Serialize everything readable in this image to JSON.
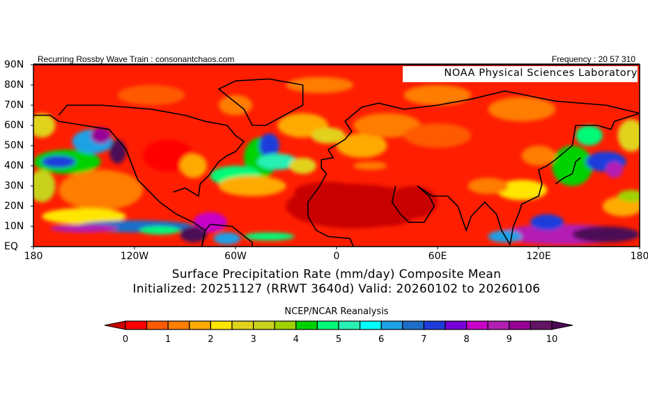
{
  "header": {
    "left": "Recurring Rossby Wave Train : consonantchaos.com",
    "right": "Frequency : 20 57 310"
  },
  "credit": "NOAA Physical Sciences Laboratory",
  "map": {
    "lat_labels": [
      "90N",
      "80N",
      "70N",
      "60N",
      "50N",
      "40N",
      "30N",
      "20N",
      "10N",
      "EQ"
    ],
    "lon_labels": [
      "180",
      "120W",
      "60W",
      "0",
      "60E",
      "120E",
      "180"
    ],
    "extent": {
      "lon": [
        -180,
        180
      ],
      "lat": [
        0,
        90
      ]
    },
    "variable": "Surface Precipitation Rate (mm/day)"
  },
  "title": {
    "line1": "Surface Precipitation Rate (mm/day) Composite Mean",
    "line2": "Initialized: 20251127 (RRWT 3640d) Valid: 20260102 to 20260106"
  },
  "colorbar": {
    "label": "NCEP/NCAR Reanalysis",
    "tick_labels": [
      "0",
      "1",
      "2",
      "3",
      "4",
      "5",
      "6",
      "7",
      "8",
      "9",
      "10"
    ],
    "range": [
      0,
      10
    ],
    "step": 0.5,
    "under_color": "#c80000",
    "over_color": "#4b0a55",
    "colors": [
      "#ff0000",
      "#ff5a00",
      "#ff7d00",
      "#ffaa00",
      "#ffe600",
      "#e1d21e",
      "#c8d21e",
      "#a0d200",
      "#00d200",
      "#00fa78",
      "#28f0b4",
      "#00ffff",
      "#1ea0e6",
      "#1e6ec8",
      "#1e3cdc",
      "#7800dc",
      "#c800c8",
      "#b41eb4",
      "#960096",
      "#641464"
    ]
  }
}
